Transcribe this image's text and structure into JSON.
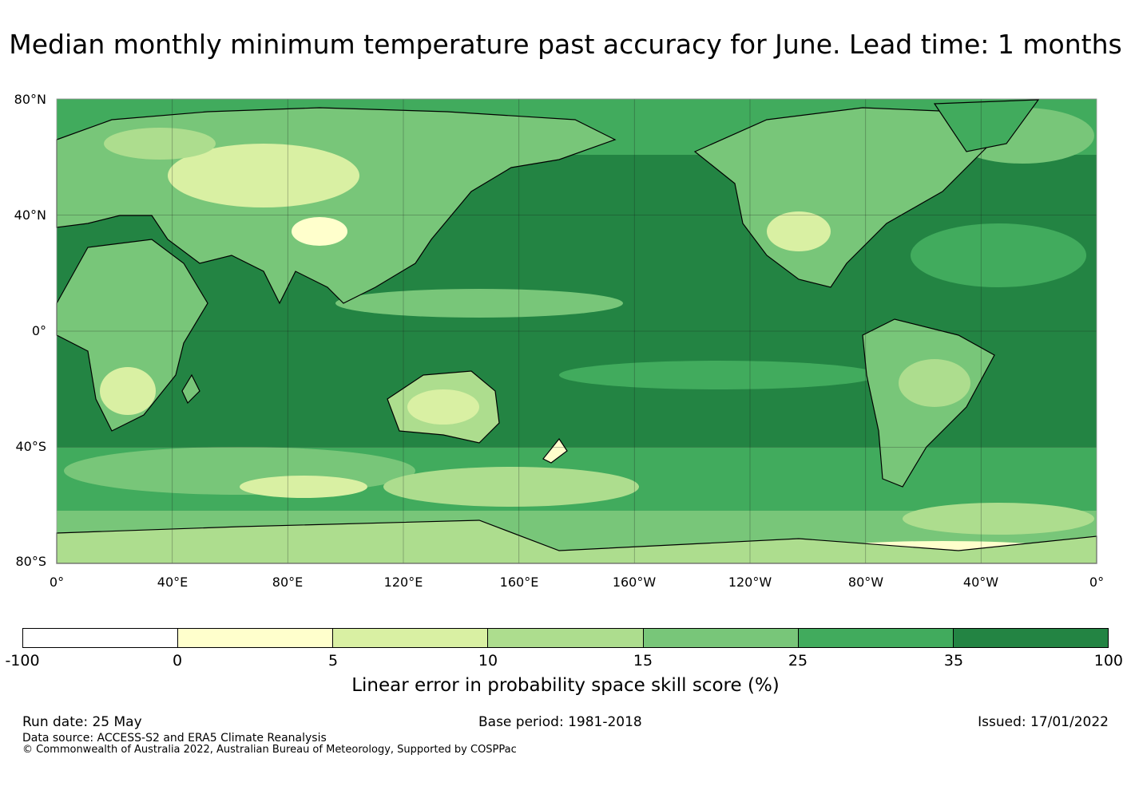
{
  "title": "Median monthly minimum temperature past accuracy for June. Lead time: 1 months",
  "map": {
    "lat_labels": [
      "80°N",
      "40°N",
      "0°",
      "40°S",
      "80°S"
    ],
    "lon_labels": [
      "0°",
      "40°E",
      "80°E",
      "120°E",
      "160°E",
      "160°W",
      "120°W",
      "80°W",
      "40°W",
      "0°"
    ],
    "ocean_color": "#238443",
    "land_color": "#41ab5d"
  },
  "colorbar": {
    "ticks": [
      "-100",
      "0",
      "5",
      "10",
      "15",
      "25",
      "35",
      "100"
    ],
    "colors": [
      "#ffffff",
      "#ffffcc",
      "#d9f0a3",
      "#addd8e",
      "#78c679",
      "#41ab5d",
      "#238443"
    ],
    "label": "Linear error in probability space skill score (%)"
  },
  "footer": {
    "run_date": "Run date: 25 May",
    "base_period": "Base period: 1981-2018",
    "issued": "Issued: 17/01/2022",
    "data_source": "Data source: ACCESS-S2 and ERA5 Climate Reanalysis",
    "copyright": "© Commonwealth of Australia 2022, Australian Bureau of Meteorology, Supported by COSPPac"
  }
}
